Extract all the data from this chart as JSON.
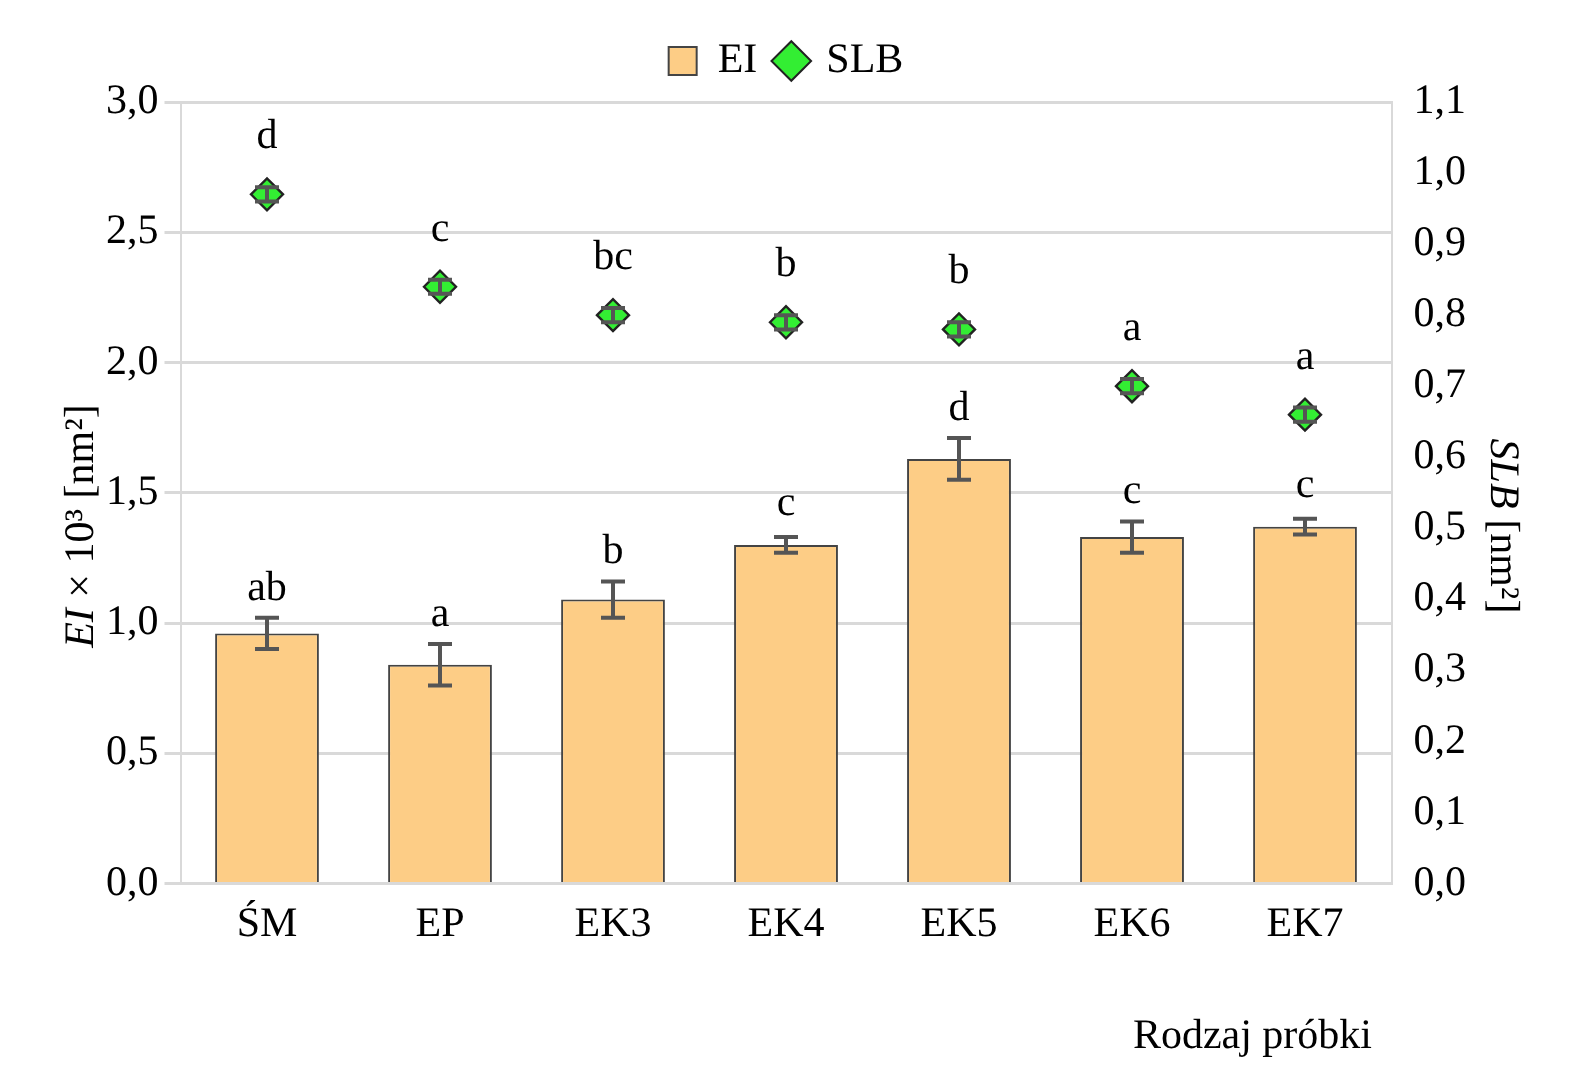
{
  "chart_data": {
    "type": "bar",
    "xlabel": "Rodzaj próbki",
    "ylabel": "EI × 10³ [nm²]",
    "y2label": "SLB [nm²]",
    "categories": [
      "ŚM",
      "EP",
      "EK3",
      "EK4",
      "EK5",
      "EK6",
      "EK7"
    ],
    "series": [
      {
        "name": "EI",
        "color": "#fdcd86",
        "values": [
          0.96,
          0.84,
          1.09,
          1.3,
          1.63,
          1.33,
          1.37
        ],
        "errors": [
          0.06,
          0.08,
          0.07,
          0.03,
          0.08,
          0.06,
          0.03
        ],
        "value_labels": [
          "ab",
          "a",
          "b",
          "c",
          "d",
          "c",
          "c"
        ]
      },
      {
        "name": "SLB",
        "type": "scatter",
        "axis": "y2",
        "marker": "diamond",
        "color": "#33ee33",
        "values": [
          0.97,
          0.84,
          0.8,
          0.79,
          0.78,
          0.7,
          0.66
        ],
        "errors": [
          0.01,
          0.01,
          0.01,
          0.01,
          0.01,
          0.01,
          0.01
        ],
        "value_labels": [
          "d",
          "c",
          "bc",
          "b",
          "b",
          "a",
          "a"
        ]
      }
    ],
    "ylim": [
      0,
      3
    ],
    "yticks": [
      {
        "value": 0,
        "label": "0,0"
      },
      {
        "value": 0.5,
        "label": "0,5"
      },
      {
        "value": 1,
        "label": "1,0"
      },
      {
        "value": 1.5,
        "label": "1,5"
      },
      {
        "value": 2,
        "label": "2,0"
      },
      {
        "value": 2.5,
        "label": "2,5"
      },
      {
        "value": 3,
        "label": "3,0"
      }
    ],
    "y2lim": [
      0,
      1.1
    ],
    "y2ticks": [
      {
        "value": 0,
        "label": "0,0"
      },
      {
        "value": 0.1,
        "label": "0,1"
      },
      {
        "value": 0.2,
        "label": "0,2"
      },
      {
        "value": 0.3,
        "label": "0,3"
      },
      {
        "value": 0.4,
        "label": "0,4"
      },
      {
        "value": 0.5,
        "label": "0,5"
      },
      {
        "value": 0.6,
        "label": "0,6"
      },
      {
        "value": 0.7,
        "label": "0,7"
      },
      {
        "value": 0.8,
        "label": "0,8"
      },
      {
        "value": 0.9,
        "label": "0,9"
      },
      {
        "value": 1,
        "label": "1,0"
      },
      {
        "value": 1.1,
        "label": "1,1"
      }
    ],
    "grid": "y",
    "legend": "top"
  }
}
